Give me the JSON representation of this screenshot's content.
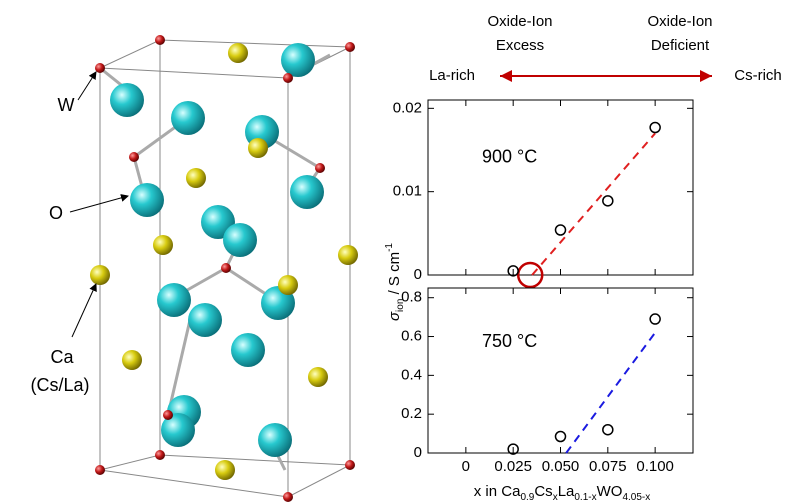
{
  "structure": {
    "labels": [
      "W",
      "O",
      "Ca",
      "(Cs/La)"
    ]
  },
  "header": {
    "left_top": [
      "Oxide-Ion",
      "Excess"
    ],
    "right_top": [
      "Oxide-Ion",
      "Deficient"
    ],
    "left": "La-rich",
    "right": "Cs-rich",
    "top_color": "#c00000",
    "side_color": "#1f3c88"
  },
  "y_label": {
    "symbol": "σ",
    "subscript": "ion",
    "unit": " / S cm",
    "superscript": "-1"
  },
  "x_label_parts": [
    "x in Ca",
    "0.9",
    "Cs",
    "x",
    "La",
    "0.1-x",
    "WO",
    "4.05-x"
  ],
  "chart_data": [
    {
      "type": "scatter",
      "annotation": "900 °C",
      "annotation_color": "#e02020",
      "xlim": [
        -0.02,
        0.12
      ],
      "ylim": [
        0,
        0.021
      ],
      "xticks": [
        0,
        0.025,
        {
          "value": 0.05,
          "label": "0.050"
        },
        0.075,
        {
          "value": 0.1,
          "label": "0.100"
        }
      ],
      "yticks": [
        0,
        0.01,
        0.02
      ],
      "show_xtick_labels": false,
      "points": {
        "x": [
          0.025,
          0.05,
          0.075,
          0.1
        ],
        "y": [
          0.0005,
          0.0054,
          0.0089,
          0.0177
        ]
      },
      "fit_line": {
        "x": [
          0.035,
          0.1
        ],
        "y": [
          0,
          0.017
        ],
        "color": "#e02020"
      },
      "highlight": {
        "x": 0.034,
        "y": 0,
        "color": "#c00000"
      }
    },
    {
      "type": "scatter",
      "annotation": "750 °C",
      "annotation_color": "#1a1ae0",
      "xlim": [
        -0.02,
        0.12
      ],
      "ylim": [
        0,
        0.85
      ],
      "xticks": [
        0,
        0.025,
        {
          "value": 0.05,
          "label": "0.050"
        },
        0.075,
        {
          "value": 0.1,
          "label": "0.100"
        }
      ],
      "yticks": [
        0,
        0.2,
        0.4,
        0.6,
        0.8
      ],
      "show_xtick_labels": true,
      "points": {
        "x": [
          0.025,
          0.05,
          0.075,
          0.1
        ],
        "y": [
          0.02,
          0.085,
          0.12,
          0.69
        ]
      },
      "fit_line": {
        "x": [
          0.053,
          0.1
        ],
        "y": [
          0,
          0.62
        ],
        "color": "#1a1ae0"
      }
    }
  ]
}
